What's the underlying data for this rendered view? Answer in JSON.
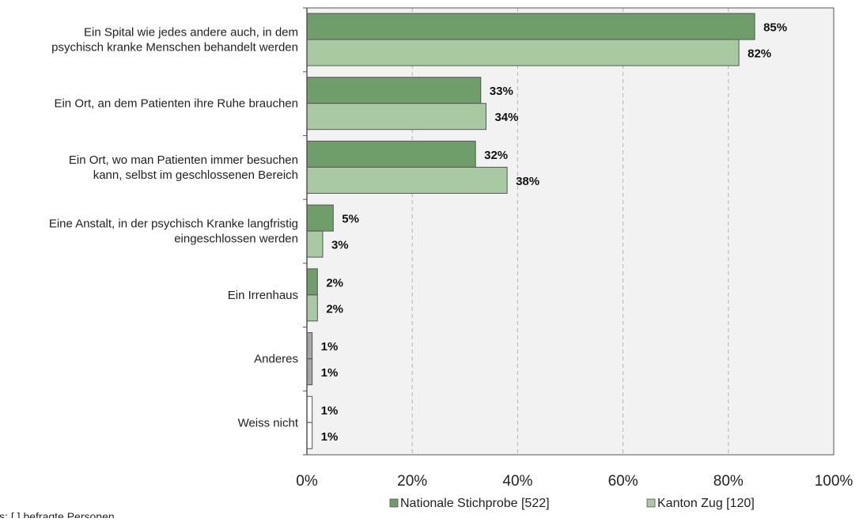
{
  "chart_data": {
    "type": "bar",
    "orientation": "horizontal",
    "categories": [
      [
        "Ein Spital wie jedes andere auch, in dem",
        "psychisch kranke Menschen behandelt werden"
      ],
      [
        "Ein Ort, an dem Patienten ihre Ruhe brauchen"
      ],
      [
        "Ein Ort, wo man Patienten immer besuchen",
        "kann, selbst im geschlossenen Bereich"
      ],
      [
        "Eine Anstalt, in der psychisch Kranke langfristig",
        "eingeschlossen werden"
      ],
      [
        "Ein Irrenhaus"
      ],
      [
        "Anderes"
      ],
      [
        "Weiss nicht"
      ]
    ],
    "series": [
      {
        "name": "Nationale Stichprobe [522]",
        "values": [
          85,
          33,
          32,
          5,
          2,
          1,
          1
        ],
        "labels": [
          "85%",
          "33%",
          "32%",
          "5%",
          "2%",
          "1%",
          "1%"
        ]
      },
      {
        "name": "Kanton Zug [120]",
        "values": [
          82,
          34,
          38,
          3,
          2,
          1,
          1
        ],
        "labels": [
          "82%",
          "34%",
          "38%",
          "3%",
          "2%",
          "1%",
          "1%"
        ]
      }
    ],
    "category_colors": [
      [
        "#6f9e6a",
        "#a9c9a3"
      ],
      [
        "#6f9e6a",
        "#a9c9a3"
      ],
      [
        "#6f9e6a",
        "#a9c9a3"
      ],
      [
        "#6f9e6a",
        "#a9c9a3"
      ],
      [
        "#6f9e6a",
        "#a9c9a3"
      ],
      [
        "#a6a6a6",
        "#a6a6a6"
      ],
      [
        "#ffffff",
        "#ffffff"
      ]
    ],
    "bar_stroke": "#555555",
    "plot_background": "#f2f2f2",
    "gridline_color": "#b3b3b3",
    "xlim": [
      0,
      100
    ],
    "x_ticks": [
      0,
      20,
      40,
      60,
      80,
      100
    ],
    "x_tick_labels": [
      "0%",
      "20%",
      "40%",
      "60%",
      "80%",
      "100%"
    ],
    "grid": true,
    "legend_position": "bottom",
    "legend_colors": [
      "#6f9e6a",
      "#a9c9a3"
    ]
  },
  "note": "is: [ ] befragte Personen"
}
